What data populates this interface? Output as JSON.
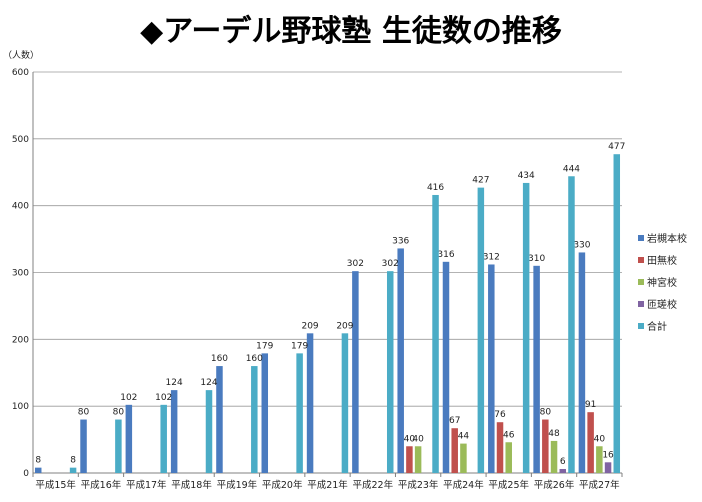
{
  "chart_data": {
    "type": "bar",
    "title": "◆アーデル野球塾 生徒数の推移",
    "ylabel": "（人数）",
    "xlabel": "",
    "ylim": [
      0,
      600
    ],
    "yticks": [
      0,
      100,
      200,
      300,
      400,
      500,
      600
    ],
    "grid": true,
    "legend_position": "right",
    "categories": [
      "平成15年",
      "平成16年",
      "平成17年",
      "平成18年",
      "平成19年",
      "平成20年",
      "平成21年",
      "平成22年",
      "平成23年",
      "平成24年",
      "平成25年",
      "平成26年",
      "平成27年"
    ],
    "series": [
      {
        "name": "岩槻本校",
        "color": "#4a7bbf",
        "values": [
          8,
          80,
          102,
          124,
          160,
          179,
          209,
          302,
          336,
          316,
          312,
          310,
          330
        ]
      },
      {
        "name": "田無校",
        "color": "#c0504d",
        "values": [
          null,
          null,
          null,
          null,
          null,
          null,
          null,
          null,
          40,
          67,
          76,
          80,
          91
        ]
      },
      {
        "name": "神宮校",
        "color": "#9bbb59",
        "values": [
          null,
          null,
          null,
          null,
          null,
          null,
          null,
          null,
          40,
          44,
          46,
          48,
          40
        ]
      },
      {
        "name": "匝瑳校",
        "color": "#8064a2",
        "values": [
          null,
          null,
          null,
          null,
          null,
          null,
          null,
          null,
          null,
          null,
          null,
          6,
          16
        ]
      },
      {
        "name": "合計",
        "color": "#4bacc6",
        "values": [
          8,
          80,
          102,
          124,
          160,
          179,
          209,
          302,
          416,
          427,
          434,
          444,
          477
        ]
      }
    ]
  }
}
